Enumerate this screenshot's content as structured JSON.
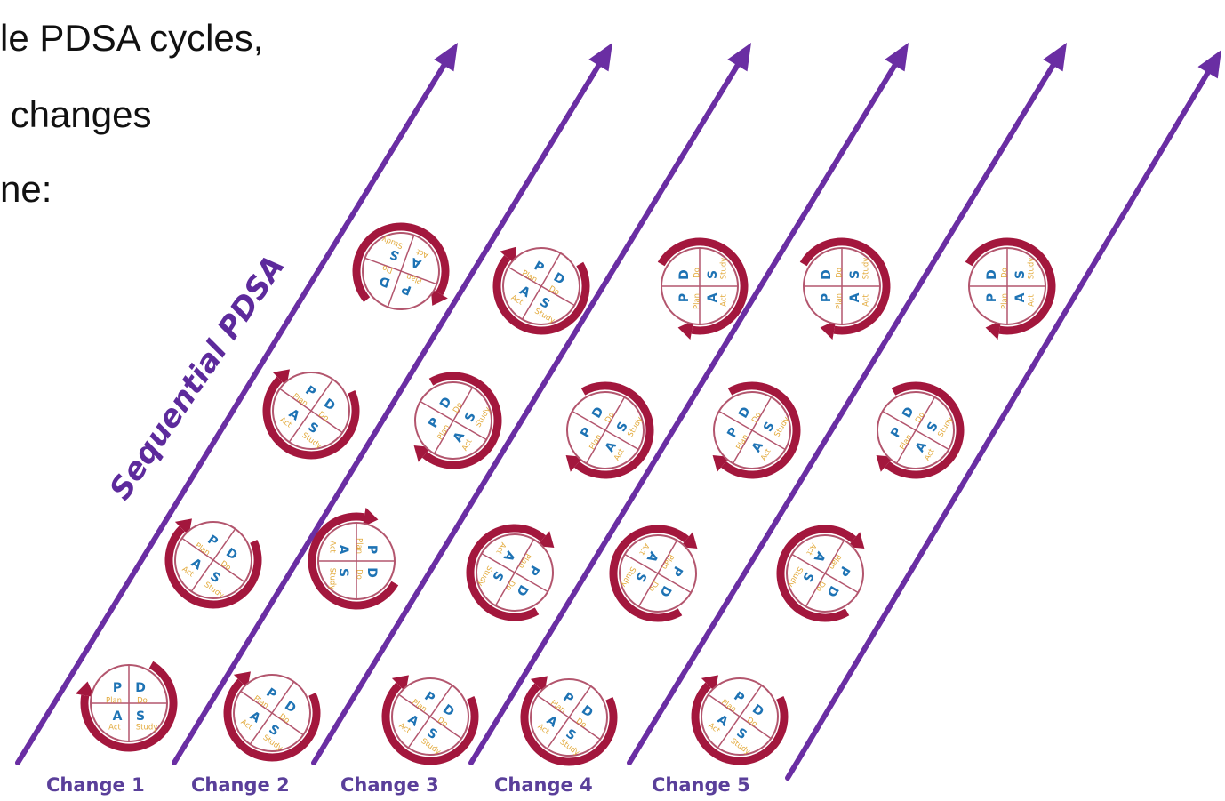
{
  "heading": {
    "lines": [
      "le PDSA cycles,",
      " changes",
      "ne:"
    ]
  },
  "sequential_label": "Sequential PDSA",
  "changes": [
    "Change 1",
    "Change 2",
    "Change 3",
    "Change 4",
    "Change 5"
  ],
  "cycle_quadrants": {
    "letters": [
      "P",
      "D",
      "S",
      "A"
    ],
    "words": [
      "Plan",
      "Do",
      "Study",
      "Act"
    ]
  },
  "colors": {
    "arrow": "#6a2ea3",
    "cycle_arrow": "#a3173d",
    "circle_ring": "#b3566e",
    "letter": "#1e73b4",
    "word": "#e2a93a",
    "label": "#5a3f9a"
  },
  "icons": [
    "diagonal-arrow-icon",
    "pdsa-cycle-icon",
    "circular-arrow-icon"
  ]
}
